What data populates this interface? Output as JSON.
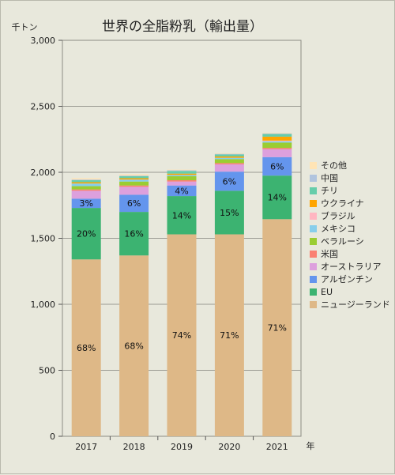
{
  "chart_data": {
    "type": "bar",
    "stacked": true,
    "title": "世界の全脂粉乳（輸出量）",
    "ylabel": "千トン",
    "xlabel": "年",
    "ylim": [
      0,
      3000
    ],
    "yticks": [
      0,
      500,
      1000,
      1500,
      2000,
      2500,
      3000
    ],
    "ytick_labels": [
      "0",
      "500",
      "1,000",
      "1,500",
      "2,000",
      "2,500",
      "3,000"
    ],
    "categories": [
      "2017",
      "2018",
      "2019",
      "2020",
      "2021"
    ],
    "grid": true,
    "legend_position": "right",
    "series": [
      {
        "name": "ニュージーランド",
        "color": "#deb887",
        "values": [
          1340,
          1370,
          1530,
          1530,
          1645
        ],
        "labels": [
          "68%",
          "68%",
          "74%",
          "71%",
          "71%"
        ]
      },
      {
        "name": "EU",
        "color": "#3cb371",
        "values": [
          390,
          330,
          290,
          330,
          330
        ],
        "labels": [
          "20%",
          "16%",
          "14%",
          "15%",
          "14%"
        ]
      },
      {
        "name": "アルゼンチン",
        "color": "#6495ed",
        "values": [
          70,
          130,
          80,
          145,
          140
        ],
        "labels": [
          "3%",
          "6%",
          "4%",
          "6%",
          "6%"
        ]
      },
      {
        "name": "オーストラリア",
        "color": "#dda0dd",
        "values": [
          60,
          60,
          30,
          55,
          60
        ],
        "labels": [
          "",
          "",
          "",
          "",
          ""
        ]
      },
      {
        "name": "米国",
        "color": "#fa8072",
        "values": [
          10,
          10,
          10,
          10,
          10
        ],
        "labels": [
          "",
          "",
          "",
          "",
          ""
        ]
      },
      {
        "name": "ベラルーシ",
        "color": "#9acd32",
        "values": [
          25,
          30,
          30,
          30,
          40
        ],
        "labels": [
          "",
          "",
          "",
          "",
          ""
        ]
      },
      {
        "name": "メキシコ",
        "color": "#87ceeb",
        "values": [
          20,
          15,
          10,
          10,
          10
        ],
        "labels": [
          "",
          "",
          "",
          "",
          ""
        ]
      },
      {
        "name": "ブラジル",
        "color": "#ffb6c1",
        "values": [
          0,
          0,
          0,
          0,
          5
        ],
        "labels": [
          "",
          "",
          "",
          "",
          ""
        ]
      },
      {
        "name": "ウクライナ",
        "color": "#ffa500",
        "values": [
          10,
          10,
          10,
          10,
          30
        ],
        "labels": [
          "",
          "",
          "",
          "",
          ""
        ]
      },
      {
        "name": "チリ",
        "color": "#66cdaa",
        "values": [
          15,
          15,
          20,
          15,
          20
        ],
        "labels": [
          "",
          "",
          "",
          "",
          ""
        ]
      },
      {
        "name": "中国",
        "color": "#b0c4de",
        "values": [
          5,
          5,
          5,
          5,
          5
        ],
        "labels": [
          "",
          "",
          "",
          "",
          ""
        ]
      },
      {
        "name": "その他",
        "color": "#ffe4b5",
        "values": [
          10,
          10,
          5,
          5,
          5
        ],
        "labels": [
          "",
          "",
          "",
          "",
          ""
        ]
      }
    ]
  }
}
